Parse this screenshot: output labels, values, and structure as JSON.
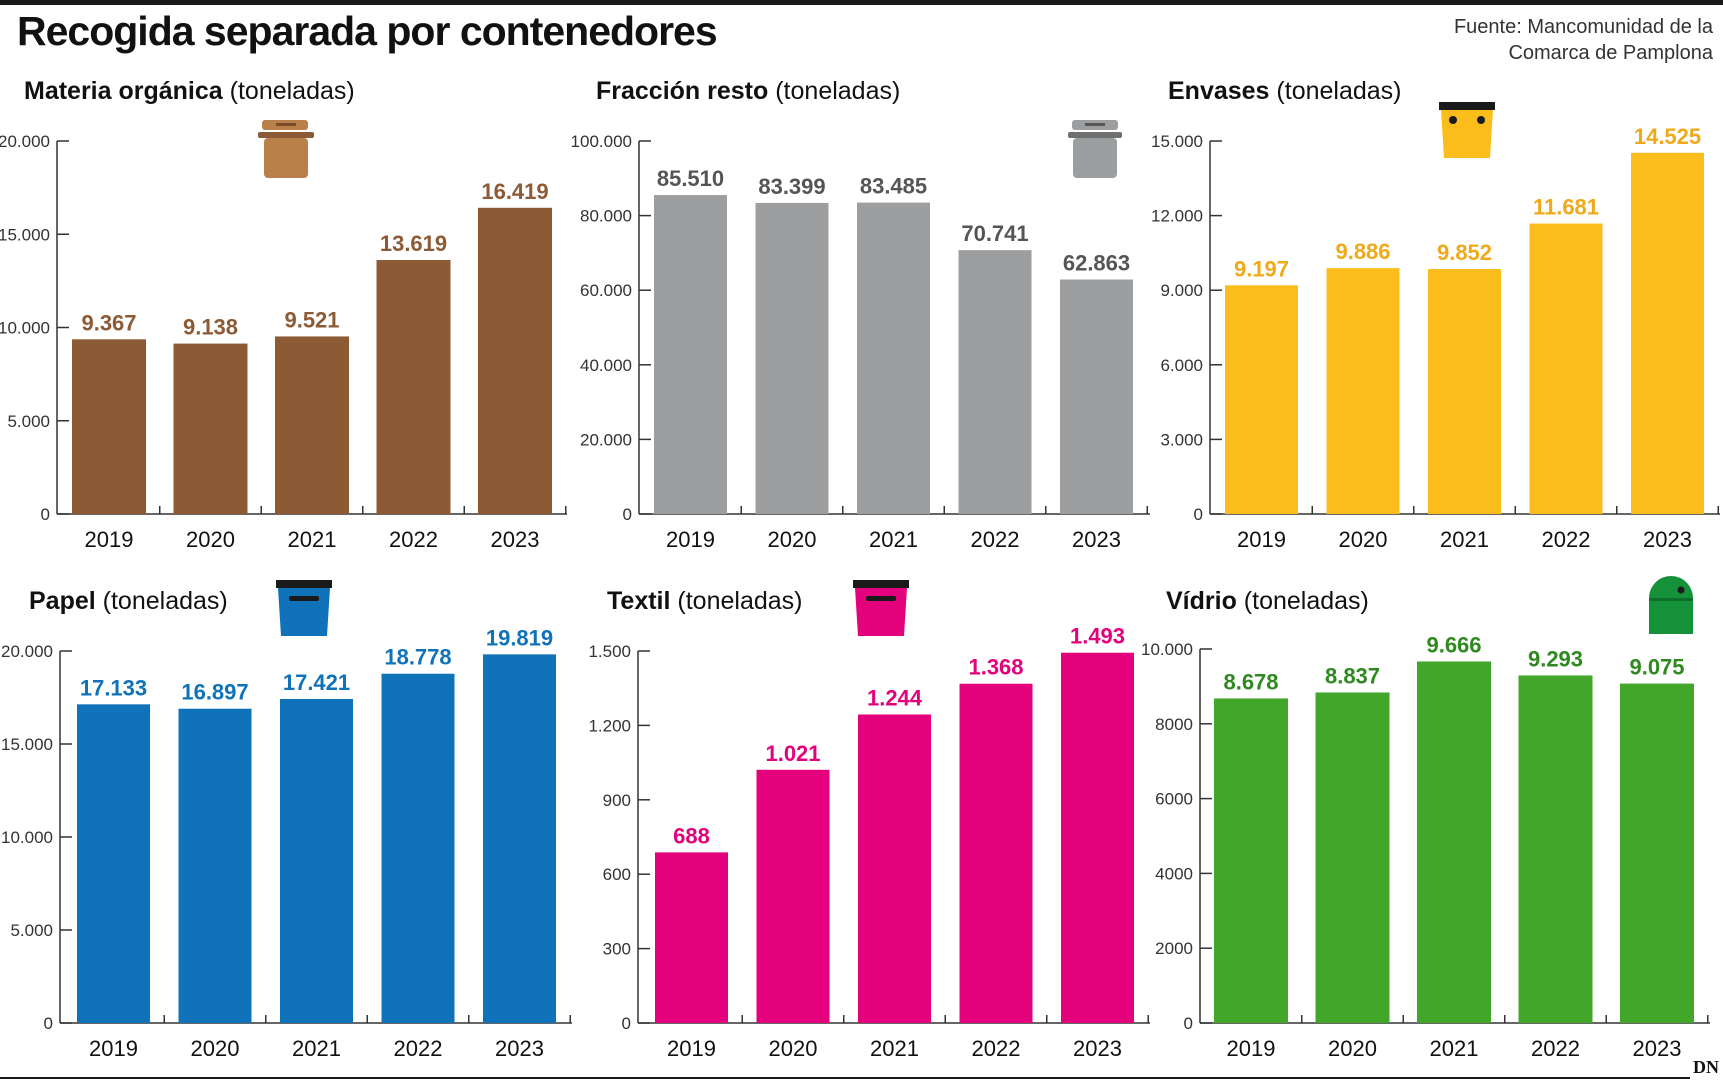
{
  "title": "Recogida separada por contenedores",
  "source": "Fuente: Mancomunidad de la Comarca de Pamplona",
  "logo": "DN",
  "chart_data": [
    {
      "type": "bar",
      "title": "Materia orgánica",
      "unit": "(toneladas)",
      "color": "#8c5a35",
      "icon": "brown-bin-icon",
      "categories": [
        "2019",
        "2020",
        "2021",
        "2022",
        "2023"
      ],
      "values": [
        9367,
        9138,
        9521,
        13619,
        16419
      ],
      "value_labels": [
        "9.367",
        "9.138",
        "9.521",
        "13.619",
        "16.419"
      ],
      "ylim": [
        0,
        20000
      ],
      "yticks": [
        0,
        5000,
        10000,
        15000,
        20000
      ],
      "ytick_labels": [
        "0",
        "5.000",
        "10.000",
        "15.000",
        "20.000"
      ]
    },
    {
      "type": "bar",
      "title": "Fracción resto",
      "unit": "(toneladas)",
      "color": "#9d9e9f",
      "label_color": "#555555",
      "icon": "grey-bin-icon",
      "categories": [
        "2019",
        "2020",
        "2021",
        "2022",
        "2023"
      ],
      "values": [
        85510,
        83399,
        83485,
        70741,
        62863
      ],
      "value_labels": [
        "85.510",
        "83.399",
        "83.485",
        "70.741",
        "62.863"
      ],
      "ylim": [
        0,
        100000
      ],
      "yticks": [
        0,
        20000,
        40000,
        60000,
        80000,
        100000
      ],
      "ytick_labels": [
        "0",
        "20.000",
        "40.000",
        "60.000",
        "80.000",
        "100.000"
      ]
    },
    {
      "type": "bar",
      "title": "Envases",
      "unit": "(toneladas)",
      "color": "#fbbd1c",
      "label_color": "#f0a91a",
      "icon": "yellow-bin-icon",
      "categories": [
        "2019",
        "2020",
        "2021",
        "2022",
        "2023"
      ],
      "values": [
        9197,
        9886,
        9852,
        11681,
        14525
      ],
      "value_labels": [
        "9.197",
        "9.886",
        "9.852",
        "11.681",
        "14.525"
      ],
      "ylim": [
        0,
        15000
      ],
      "yticks": [
        0,
        3000,
        6000,
        9000,
        12000,
        15000
      ],
      "ytick_labels": [
        "0",
        "3.000",
        "6.000",
        "9.000",
        "12.000",
        "15.000"
      ]
    },
    {
      "type": "bar",
      "title": "Papel",
      "unit": "(toneladas)",
      "color": "#1072b9",
      "icon": "blue-bin-icon",
      "categories": [
        "2019",
        "2020",
        "2021",
        "2022",
        "2023"
      ],
      "values": [
        17133,
        16897,
        17421,
        18778,
        19819
      ],
      "value_labels": [
        "17.133",
        "16.897",
        "17.421",
        "18.778",
        "19.819"
      ],
      "ylim": [
        0,
        20000
      ],
      "yticks": [
        0,
        5000,
        10000,
        15000,
        20000
      ],
      "ytick_labels": [
        "0",
        "5.000",
        "10.000",
        "15.000",
        "20.000"
      ]
    },
    {
      "type": "bar",
      "title": "Textil",
      "unit": "(toneladas)",
      "color": "#e3027b",
      "icon": "pink-bin-icon",
      "categories": [
        "2019",
        "2020",
        "2021",
        "2022",
        "2023"
      ],
      "values": [
        688,
        1021,
        1244,
        1368,
        1493
      ],
      "value_labels": [
        "688",
        "1.021",
        "1.244",
        "1.368",
        "1.493"
      ],
      "ylim": [
        0,
        1500
      ],
      "yticks": [
        0,
        300,
        600,
        900,
        1200,
        1500
      ],
      "ytick_labels": [
        "0",
        "300",
        "600",
        "900",
        "1.200",
        "1.500"
      ]
    },
    {
      "type": "bar",
      "title": "Vídrio",
      "unit": "(toneladas)",
      "color": "#41a62a",
      "label_color": "#2e8a1f",
      "icon": "green-igloo-bin-icon",
      "categories": [
        "2019",
        "2020",
        "2021",
        "2022",
        "2023"
      ],
      "values": [
        8678,
        8837,
        9666,
        9293,
        9075
      ],
      "value_labels": [
        "8.678",
        "8.837",
        "9.666",
        "9.293",
        "9.075"
      ],
      "ylim": [
        0,
        10000
      ],
      "yticks": [
        0,
        2000,
        4000,
        6000,
        8000,
        10000
      ],
      "ytick_labels": [
        "0",
        "2000",
        "4000",
        "6000",
        "8000",
        "10.000"
      ]
    }
  ]
}
